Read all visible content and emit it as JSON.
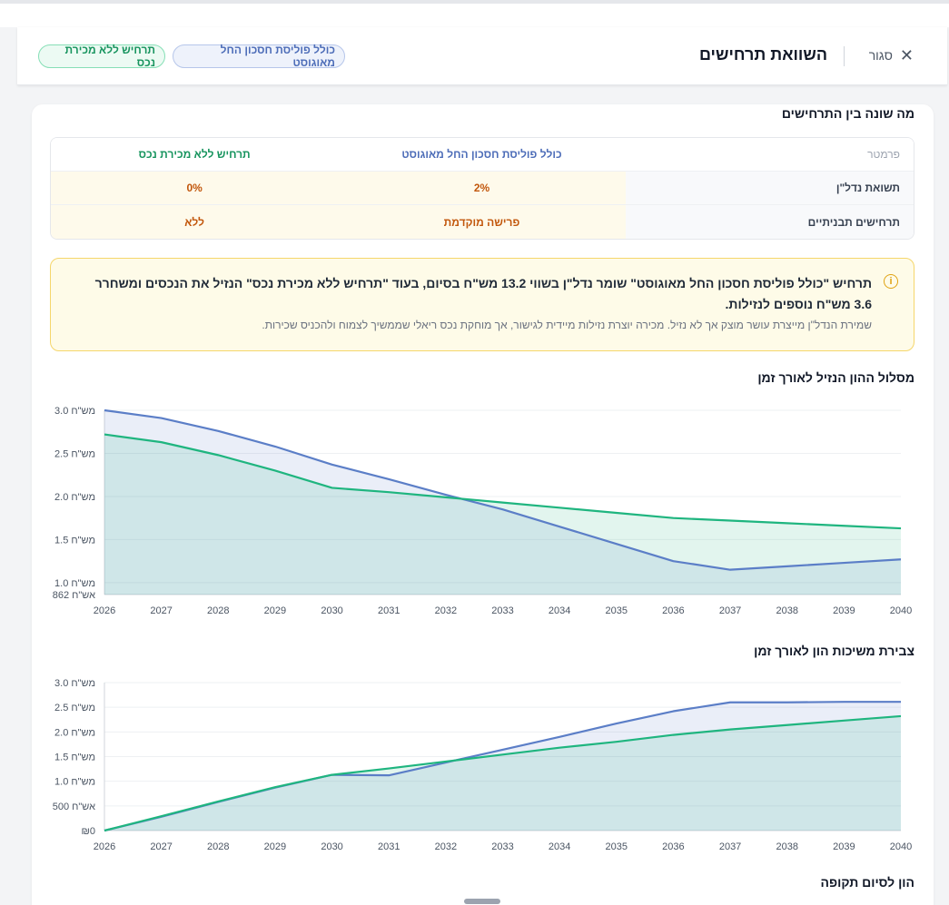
{
  "header": {
    "close_label": "סגור",
    "title": "השוואת תרחישים",
    "scenario_a_pill": "כולל פוליסת חסכון החל מאוגוסט",
    "scenario_b_pill": "תרחיש ללא מכירת נכס"
  },
  "differences": {
    "title": "מה שונה בין התרחישים",
    "table": {
      "headers": [
        "פרמטר",
        "כולל פוליסת חסכון החל מאוגוסט",
        "תרחיש ללא מכירת נכס"
      ],
      "rows": [
        [
          "תשואת נדל\"ן",
          "2%",
          "0%"
        ],
        [
          "תרחישים תבניתיים",
          "פרישה מוקדמת",
          "ללא"
        ]
      ]
    }
  },
  "insight": {
    "main": "תרחיש \"כולל פוליסת חסכון החל מאוגוסט\" שומר נדל\"ן בשווי 13.2 מש\"ח בסיום, בעוד \"תרחיש ללא מכירת נכס\" הנזיל את הנכסים ומשחרר 3.6 מש\"ח נוספים לנזילות.",
    "sub": "שמירת הנדל\"ן מייצרת עושר מוצק אך לא נזיל. מכירה יוצרת נזילות מיידית לגישור, אך מוחקת נכס ריאלי שממשיך לצמוח ולהכניס שכירות."
  },
  "colors": {
    "scenario_a": "#5b7ec7",
    "scenario_b": "#1fb57f",
    "accent_orange": "#c2570c"
  },
  "chart_data": [
    {
      "type": "area",
      "title": "מסלול ההון הנזיל לאורך זמן",
      "x": [
        2026,
        2027,
        2028,
        2029,
        2030,
        2031,
        2032,
        2033,
        2034,
        2035,
        2036,
        2037,
        2038,
        2039,
        2040
      ],
      "y_ticks": [
        0.862,
        1.0,
        1.5,
        2.0,
        2.5,
        3.0
      ],
      "y_tick_labels": [
        "862 אש\"ח",
        "1.0 מש\"ח",
        "1.5 מש\"ח",
        "2.0 מש\"ח",
        "2.5 מש\"ח",
        "3.0 מש\"ח"
      ],
      "ylim": [
        0.862,
        3.0
      ],
      "grid": true,
      "series": [
        {
          "color": "#5b7ec7",
          "values": [
            3.0,
            2.91,
            2.76,
            2.58,
            2.37,
            2.2,
            2.02,
            1.85,
            1.65,
            1.45,
            1.25,
            1.15,
            1.19,
            1.23,
            1.27
          ]
        },
        {
          "color": "#1fb57f",
          "values": [
            2.72,
            2.63,
            2.48,
            2.3,
            2.1,
            2.05,
            1.99,
            1.93,
            1.87,
            1.81,
            1.75,
            1.72,
            1.69,
            1.66,
            1.63
          ]
        }
      ]
    },
    {
      "type": "area",
      "title": "צבירת משיכות הון לאורך זמן",
      "x": [
        2026,
        2027,
        2028,
        2029,
        2030,
        2031,
        2032,
        2033,
        2034,
        2035,
        2036,
        2037,
        2038,
        2039,
        2040
      ],
      "y_ticks": [
        0,
        0.5,
        1.0,
        1.5,
        2.0,
        2.5,
        3.0
      ],
      "y_tick_labels": [
        "₪0",
        "500 אש\"ח",
        "1.0 מש\"ח",
        "1.5 מש\"ח",
        "2.0 מש\"ח",
        "2.5 מש\"ח",
        "3.0 מש\"ח"
      ],
      "ylim": [
        0,
        3.0
      ],
      "grid": true,
      "series": [
        {
          "color": "#5b7ec7",
          "values": [
            0,
            0.28,
            0.58,
            0.87,
            1.13,
            1.12,
            1.38,
            1.64,
            1.9,
            2.17,
            2.42,
            2.6,
            2.6,
            2.61,
            2.61
          ]
        },
        {
          "color": "#1fb57f",
          "values": [
            0,
            0.29,
            0.59,
            0.88,
            1.13,
            1.26,
            1.4,
            1.54,
            1.68,
            1.8,
            1.94,
            2.05,
            2.14,
            2.23,
            2.32
          ]
        }
      ]
    }
  ],
  "end_capital": {
    "title": "הון לסיום תקופה"
  }
}
